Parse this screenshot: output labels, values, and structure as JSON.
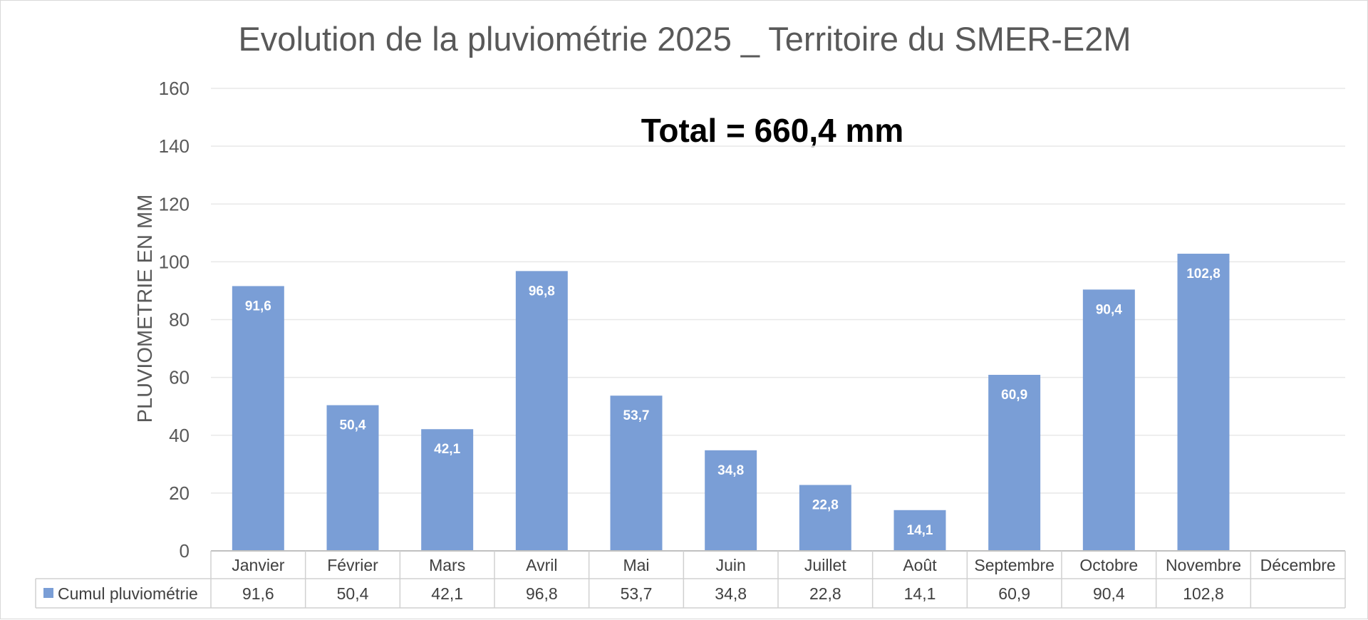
{
  "chart_data": {
    "type": "bar",
    "title": "Evolution de la pluviométrie 2025 _ Territoire du SMER-E2M",
    "ylabel": "PLUVIOMETRIE EN MM",
    "xlabel": "",
    "annotation": "Total = 660,4 mm",
    "ylim": [
      0,
      160
    ],
    "yticks": [
      0,
      20,
      40,
      60,
      80,
      100,
      120,
      140,
      160
    ],
    "grid": true,
    "categories": [
      "Janvier",
      "Février",
      "Mars",
      "Avril",
      "Mai",
      "Juin",
      "Juillet",
      "Août",
      "Septembre",
      "Octobre",
      "Novembre",
      "Décembre"
    ],
    "series": [
      {
        "name": "Cumul pluviométrie",
        "color": "#7a9ed6",
        "values": [
          91.6,
          50.4,
          42.1,
          96.8,
          53.7,
          34.8,
          22.8,
          14.1,
          60.9,
          90.4,
          102.8,
          null
        ],
        "labels": [
          "91,6",
          "50,4",
          "42,1",
          "96,8",
          "53,7",
          "34,8",
          "22,8",
          "14,1",
          "60,9",
          "90,4",
          "102,8",
          ""
        ]
      }
    ],
    "data_table": true,
    "legend": "data-table"
  }
}
